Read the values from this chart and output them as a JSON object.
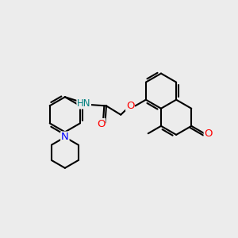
{
  "background_color": "#ececec",
  "bond_color": "#000000",
  "bond_width": 1.5,
  "atom_colors": {
    "O": "#ff0000",
    "N": "#0000ff",
    "NH": "#008080",
    "C": "#000000"
  },
  "font_size": 8.5,
  "fig_size": [
    3.0,
    3.0
  ],
  "dpi": 100
}
